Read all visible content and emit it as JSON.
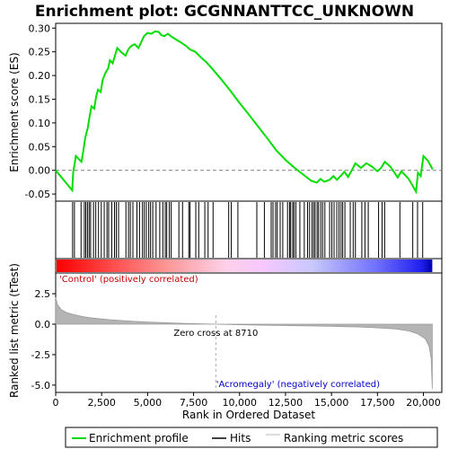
{
  "chart_data": {
    "type": "line",
    "title": "Enrichment plot: GCGNNANTTCC_UNKNOWN",
    "ylabel_top": "Enrichment score (ES)",
    "ylabel_bottom": "Ranked list metric (tTest)",
    "xlabel": "Rank in Ordered Dataset",
    "x_ticks": [
      0,
      2500,
      5000,
      7500,
      10000,
      12500,
      15000,
      17500,
      20000
    ],
    "x_tick_labels": [
      "0",
      "2,500",
      "5,000",
      "7,500",
      "10,000",
      "12,500",
      "15,000",
      "17,500",
      "20,000"
    ],
    "xlim": [
      0,
      21000
    ],
    "es_ylim": [
      -0.065,
      0.31
    ],
    "es_y_ticks": [
      -0.05,
      0.0,
      0.05,
      0.1,
      0.15,
      0.2,
      0.25,
      0.3
    ],
    "es_y_tick_labels": [
      "-0.05",
      "0.00",
      "0.05",
      "0.10",
      "0.15",
      "0.20",
      "0.25",
      "0.30"
    ],
    "metric_ylim": [
      -5.6,
      4.2
    ],
    "metric_y_ticks": [
      -5.0,
      -2.5,
      0.0,
      2.5
    ],
    "metric_y_tick_labels": [
      "-5.0",
      "-2.5",
      "0.0",
      "2.5"
    ],
    "enrichment_profile": [
      [
        0,
        0.0
      ],
      [
        900,
        -0.042
      ],
      [
        950,
        -0.005
      ],
      [
        1100,
        0.03
      ],
      [
        1400,
        0.018
      ],
      [
        1500,
        0.04
      ],
      [
        1600,
        0.068
      ],
      [
        1750,
        0.09
      ],
      [
        1850,
        0.115
      ],
      [
        1950,
        0.135
      ],
      [
        2100,
        0.13
      ],
      [
        2200,
        0.155
      ],
      [
        2300,
        0.17
      ],
      [
        2450,
        0.165
      ],
      [
        2550,
        0.19
      ],
      [
        2700,
        0.205
      ],
      [
        2850,
        0.215
      ],
      [
        2950,
        0.232
      ],
      [
        3100,
        0.226
      ],
      [
        3250,
        0.245
      ],
      [
        3350,
        0.258
      ],
      [
        3600,
        0.248
      ],
      [
        3800,
        0.242
      ],
      [
        3950,
        0.255
      ],
      [
        4100,
        0.262
      ],
      [
        4300,
        0.266
      ],
      [
        4500,
        0.258
      ],
      [
        4650,
        0.27
      ],
      [
        4800,
        0.283
      ],
      [
        5000,
        0.29
      ],
      [
        5200,
        0.288
      ],
      [
        5400,
        0.293
      ],
      [
        5600,
        0.292
      ],
      [
        5750,
        0.285
      ],
      [
        5900,
        0.283
      ],
      [
        6100,
        0.288
      ],
      [
        6300,
        0.282
      ],
      [
        6550,
        0.276
      ],
      [
        6800,
        0.27
      ],
      [
        7100,
        0.262
      ],
      [
        7300,
        0.255
      ],
      [
        7600,
        0.25
      ],
      [
        7900,
        0.238
      ],
      [
        8200,
        0.228
      ],
      [
        8500,
        0.215
      ],
      [
        9000,
        0.192
      ],
      [
        9500,
        0.168
      ],
      [
        10000,
        0.142
      ],
      [
        10500,
        0.118
      ],
      [
        11000,
        0.093
      ],
      [
        11500,
        0.068
      ],
      [
        12000,
        0.042
      ],
      [
        12500,
        0.022
      ],
      [
        13000,
        0.005
      ],
      [
        13500,
        -0.01
      ],
      [
        13900,
        -0.022
      ],
      [
        14200,
        -0.026
      ],
      [
        14400,
        -0.018
      ],
      [
        14600,
        -0.024
      ],
      [
        14900,
        -0.02
      ],
      [
        15100,
        -0.012
      ],
      [
        15300,
        -0.02
      ],
      [
        15500,
        -0.012
      ],
      [
        15700,
        -0.003
      ],
      [
        15900,
        -0.014
      ],
      [
        16100,
        0.0
      ],
      [
        16300,
        0.015
      ],
      [
        16600,
        0.005
      ],
      [
        16900,
        0.015
      ],
      [
        17200,
        0.008
      ],
      [
        17500,
        -0.002
      ],
      [
        17700,
        0.005
      ],
      [
        17900,
        0.018
      ],
      [
        18200,
        0.008
      ],
      [
        18600,
        -0.015
      ],
      [
        18800,
        -0.002
      ],
      [
        19200,
        -0.018
      ],
      [
        19600,
        -0.045
      ],
      [
        19700,
        -0.005
      ],
      [
        19850,
        -0.012
      ],
      [
        20000,
        0.03
      ],
      [
        20250,
        0.02
      ],
      [
        20500,
        0.002
      ]
    ],
    "hit_ranks": [
      920,
      1020,
      1380,
      1560,
      1640,
      1730,
      1820,
      1900,
      2060,
      2180,
      2330,
      2480,
      2640,
      2790,
      2880,
      3050,
      3200,
      3300,
      3420,
      3820,
      3960,
      4060,
      4200,
      4420,
      4560,
      4720,
      4820,
      4930,
      5060,
      5160,
      5280,
      5460,
      5660,
      5830,
      5960,
      6040,
      6180,
      6280,
      6700,
      6900,
      7240,
      7310,
      7620,
      7780,
      8110,
      8290,
      8560,
      9410,
      9550,
      9910,
      10940,
      11350,
      11720,
      11820,
      11960,
      12050,
      12210,
      12350,
      12610,
      12720,
      12780,
      12890,
      12960,
      13060,
      13280,
      13520,
      13700,
      13810,
      13940,
      14030,
      14110,
      14220,
      14300,
      14420,
      14520,
      14640,
      14900,
      15020,
      15140,
      15290,
      15410,
      15520,
      15610,
      15730,
      16020,
      16180,
      16300,
      16650,
      16820,
      17000,
      17560,
      17750,
      17890,
      18720,
      19420,
      19680,
      19960
    ],
    "metric_curve": [
      [
        0,
        2.2
      ],
      [
        100,
        1.6
      ],
      [
        300,
        1.2
      ],
      [
        600,
        0.95
      ],
      [
        1000,
        0.78
      ],
      [
        1500,
        0.62
      ],
      [
        2000,
        0.5
      ],
      [
        3000,
        0.36
      ],
      [
        4000,
        0.26
      ],
      [
        5000,
        0.18
      ],
      [
        6000,
        0.12
      ],
      [
        7000,
        0.07
      ],
      [
        8000,
        0.03
      ],
      [
        8710,
        0.0
      ],
      [
        9500,
        -0.03
      ],
      [
        10500,
        -0.06
      ],
      [
        12000,
        -0.1
      ],
      [
        13500,
        -0.14
      ],
      [
        15000,
        -0.18
      ],
      [
        16500,
        -0.23
      ],
      [
        17500,
        -0.3
      ],
      [
        18500,
        -0.4
      ],
      [
        19200,
        -0.55
      ],
      [
        19700,
        -0.8
      ],
      [
        20100,
        -1.2
      ],
      [
        20300,
        -1.8
      ],
      [
        20420,
        -2.8
      ],
      [
        20480,
        -5.3
      ]
    ],
    "zero_cross_rank": 8710,
    "annotations": {
      "positive_label": "'Control' (positively correlated)",
      "negative_label": "'Acromegaly' (negatively correlated)",
      "zero_cross_label": "Zero cross at 8710"
    },
    "legend": {
      "items": [
        {
          "label": "Enrichment profile",
          "color": "#00dd00"
        },
        {
          "label": "Hits",
          "color": "#000000"
        },
        {
          "label": "Ranking metric scores",
          "color": "#bbbbbb"
        }
      ]
    },
    "colors": {
      "profile": "#00dd00",
      "positive_label": "#cc0000",
      "negative_label": "#0000cc",
      "metric_fill": "#b4b4b4"
    }
  }
}
